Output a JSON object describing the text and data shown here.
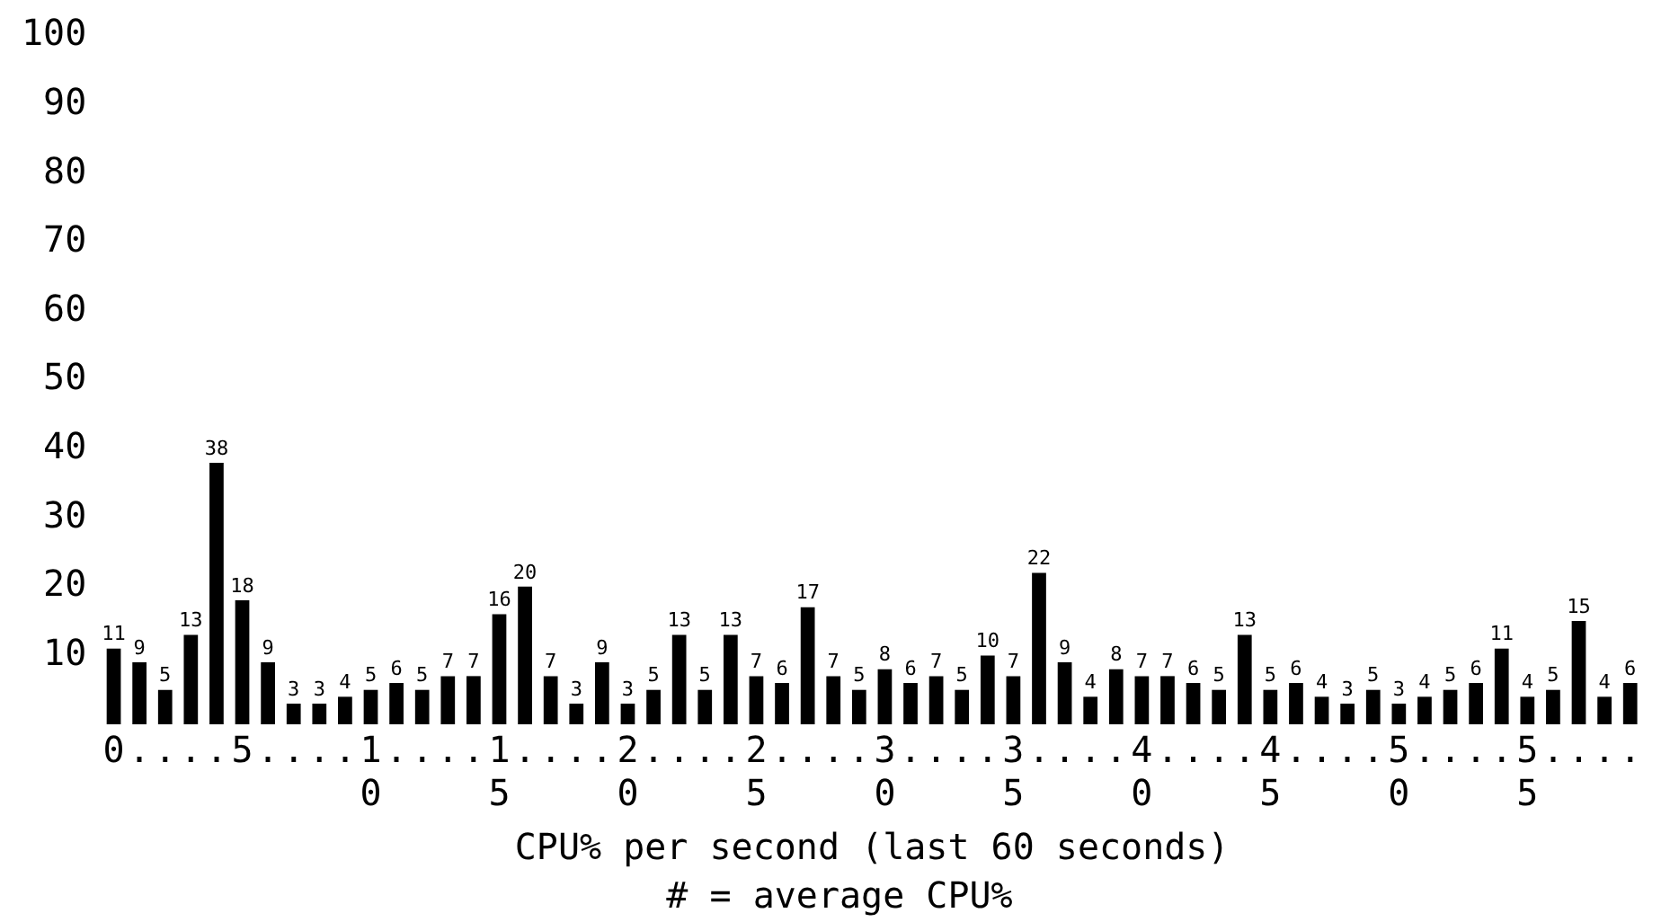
{
  "chart_data": {
    "type": "bar",
    "xlabel": "CPU% per second (last 60 seconds)",
    "annotations": [
      "# = average CPU%"
    ],
    "categories": [
      "0",
      ".",
      ".",
      ".",
      ".",
      "5",
      ".",
      ".",
      ".",
      ".",
      "10",
      ".",
      ".",
      ".",
      ".",
      "15",
      ".",
      ".",
      ".",
      ".",
      "20",
      ".",
      ".",
      ".",
      ".",
      "25",
      ".",
      ".",
      ".",
      ".",
      "30",
      ".",
      ".",
      ".",
      ".",
      "35",
      ".",
      ".",
      ".",
      ".",
      "40",
      ".",
      ".",
      ".",
      ".",
      "45",
      ".",
      ".",
      ".",
      ".",
      "50",
      ".",
      ".",
      ".",
      ".",
      "55",
      ".",
      ".",
      ".",
      "."
    ],
    "values": [
      11,
      9,
      5,
      13,
      38,
      18,
      9,
      3,
      3,
      4,
      5,
      6,
      5,
      7,
      7,
      16,
      20,
      7,
      3,
      9,
      3,
      5,
      13,
      5,
      13,
      7,
      6,
      17,
      7,
      5,
      8,
      6,
      7,
      5,
      10,
      7,
      22,
      9,
      4,
      8,
      7,
      7,
      6,
      5,
      13,
      5,
      6,
      4,
      3,
      5,
      3,
      4,
      5,
      6,
      11,
      4,
      5,
      15,
      4,
      6
    ],
    "color": "#000000",
    "ylim": [
      0,
      100
    ],
    "yticks": [
      10,
      20,
      30,
      40,
      50,
      60,
      70,
      80,
      90,
      100
    ],
    "data_labels": true,
    "grid": false,
    "legend": false
  }
}
